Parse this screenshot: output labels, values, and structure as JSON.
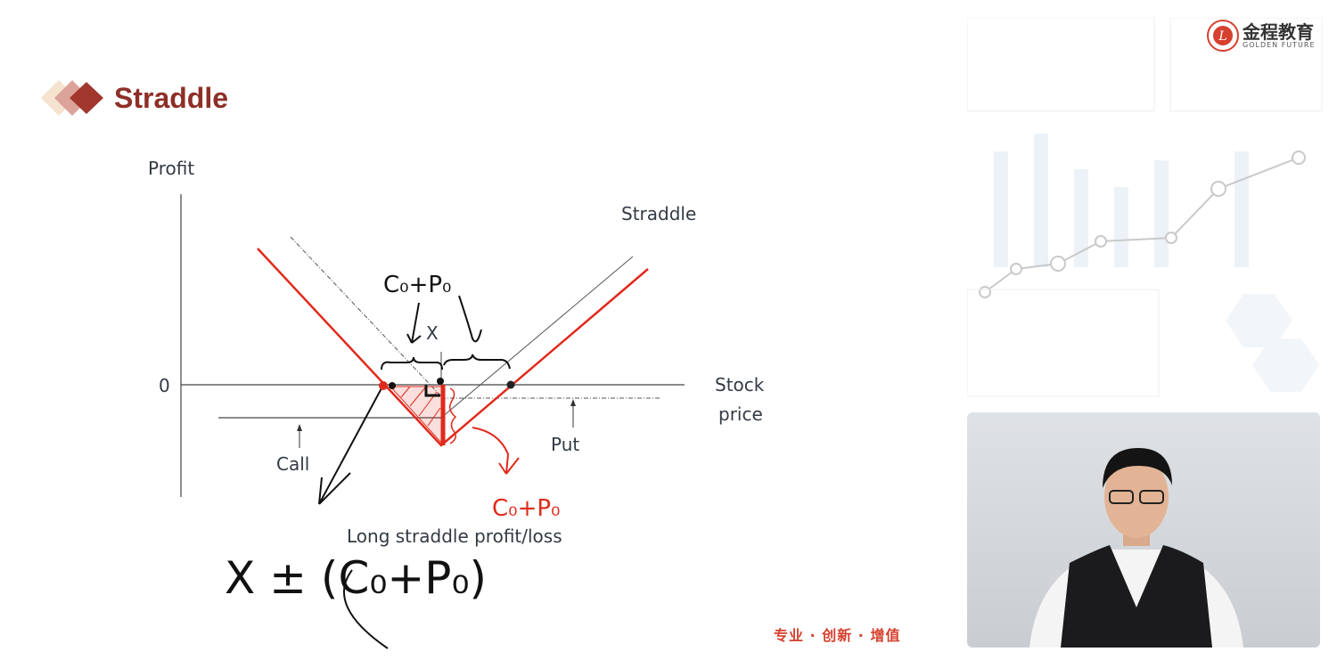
{
  "slide": {
    "title": "Straddle",
    "slogan": "专业 · 创新 · 增值",
    "brand": {
      "name_cn": "金程教育",
      "name_en": "GOLDEN FUTURE",
      "color": "#d6402e"
    },
    "accent_color": "#8e2f27"
  },
  "diagram": {
    "y_axis_label": "Profit",
    "zero_label": "0",
    "x_axis_label_line1": "Stock",
    "x_axis_label_line2": "price",
    "straddle_label": "Straddle",
    "call_label": "Call",
    "put_label": "Put",
    "strike_label": "X",
    "caption": "Long straddle profit/loss",
    "straddle_color": "#e02a1c"
  },
  "annotations": {
    "premium_black": "C₀+P₀",
    "premium_red": "C₀+P₀",
    "breakeven_formula": "X ± (C₀+P₀)"
  },
  "video": {
    "presenter": "lecturer webcam"
  }
}
